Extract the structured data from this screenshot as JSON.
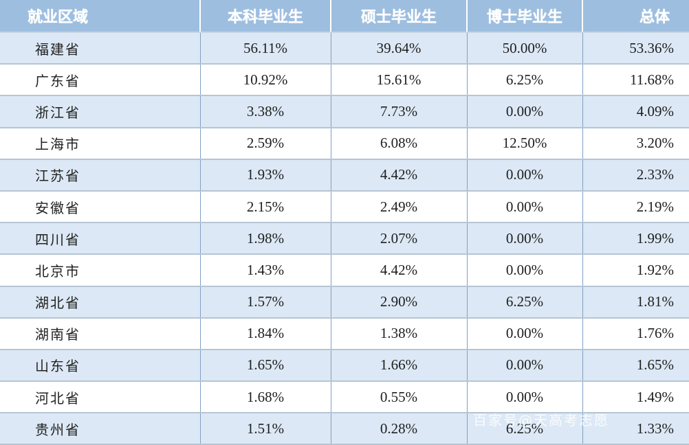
{
  "table": {
    "headers": [
      "就业区域",
      "本科毕业生",
      "硕士毕业生",
      "博士毕业生",
      "总体"
    ],
    "rows": [
      {
        "region": "福建省",
        "undergrad": "56.11%",
        "master": "39.64%",
        "doctor": "50.00%",
        "total": "53.36%"
      },
      {
        "region": "广东省",
        "undergrad": "10.92%",
        "master": "15.61%",
        "doctor": "6.25%",
        "total": "11.68%"
      },
      {
        "region": "浙江省",
        "undergrad": "3.38%",
        "master": "7.73%",
        "doctor": "0.00%",
        "total": "4.09%"
      },
      {
        "region": "上海市",
        "undergrad": "2.59%",
        "master": "6.08%",
        "doctor": "12.50%",
        "total": "3.20%"
      },
      {
        "region": "江苏省",
        "undergrad": "1.93%",
        "master": "4.42%",
        "doctor": "0.00%",
        "total": "2.33%"
      },
      {
        "region": "安徽省",
        "undergrad": "2.15%",
        "master": "2.49%",
        "doctor": "0.00%",
        "total": "2.19%"
      },
      {
        "region": "四川省",
        "undergrad": "1.98%",
        "master": "2.07%",
        "doctor": "0.00%",
        "total": "1.99%"
      },
      {
        "region": "北京市",
        "undergrad": "1.43%",
        "master": "4.42%",
        "doctor": "0.00%",
        "total": "1.92%"
      },
      {
        "region": "湖北省",
        "undergrad": "1.57%",
        "master": "2.90%",
        "doctor": "6.25%",
        "total": "1.81%"
      },
      {
        "region": "湖南省",
        "undergrad": "1.84%",
        "master": "1.38%",
        "doctor": "0.00%",
        "total": "1.76%"
      },
      {
        "region": "山东省",
        "undergrad": "1.65%",
        "master": "1.66%",
        "doctor": "0.00%",
        "total": "1.65%"
      },
      {
        "region": "河北省",
        "undergrad": "1.68%",
        "master": "0.55%",
        "doctor": "0.00%",
        "total": "1.49%"
      },
      {
        "region": "贵州省",
        "undergrad": "1.51%",
        "master": "0.28%",
        "doctor": "6.25%",
        "total": "1.33%"
      }
    ]
  },
  "watermark": "百家号@天高考志愿",
  "colors": {
    "header_bg": "#9dbedf",
    "header_text": "#ffffff",
    "alt_row_bg": "#dce8f5",
    "plain_row_bg": "#ffffff",
    "grid_line": "#7f9fc4"
  }
}
